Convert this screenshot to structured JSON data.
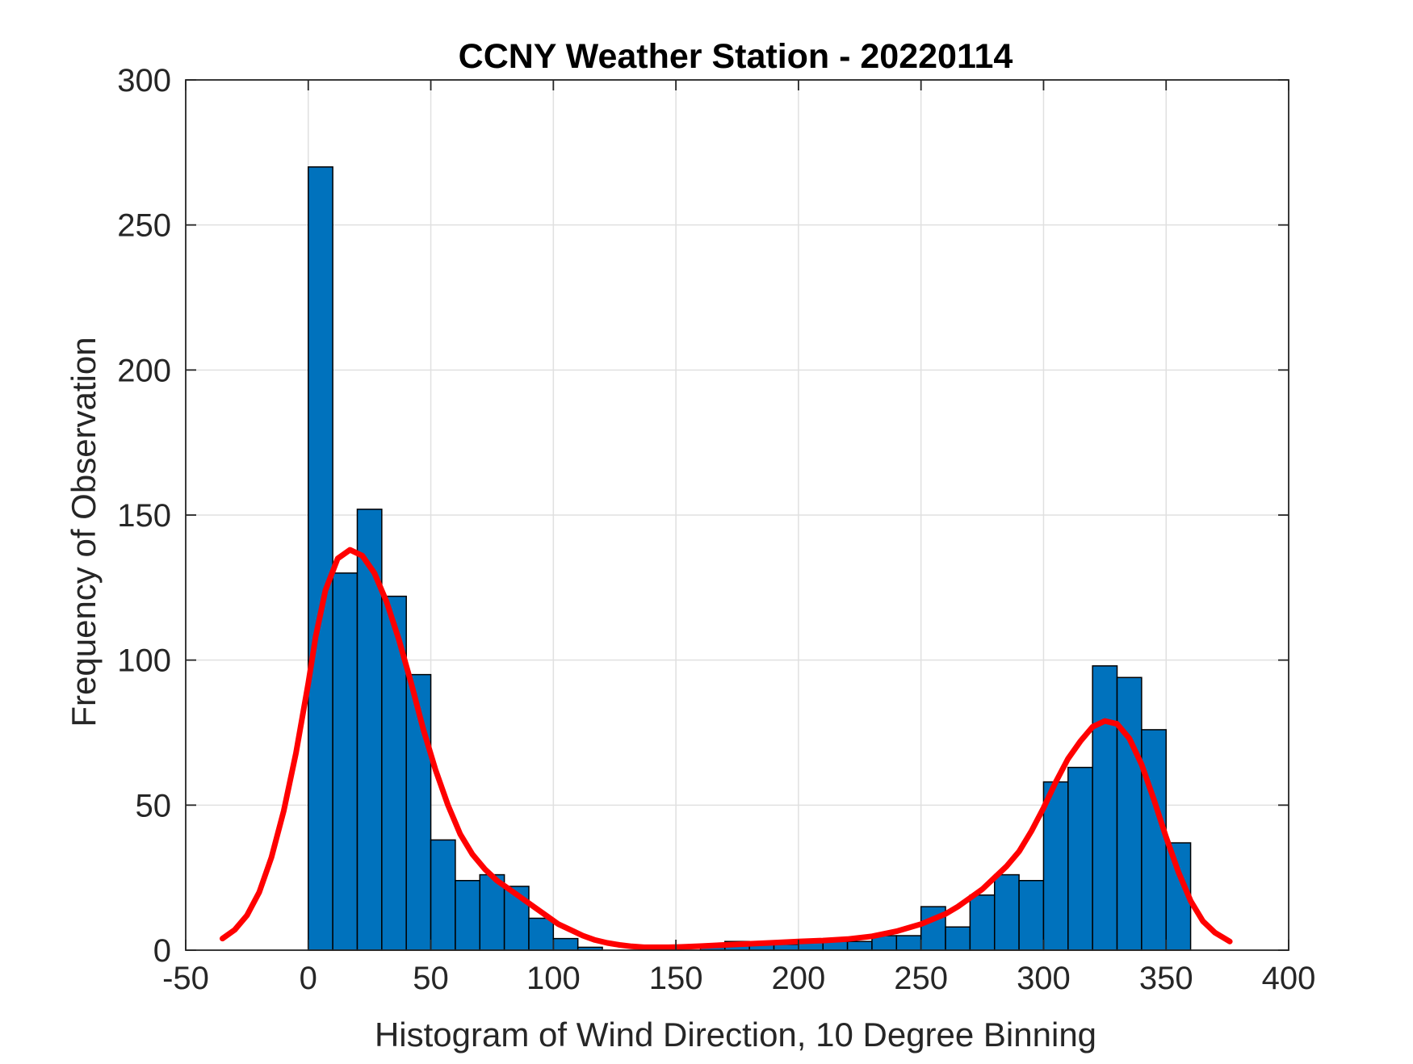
{
  "chart_data": {
    "type": "bar",
    "title": "CCNY Weather Station - 20220114",
    "xlabel": "Histogram of Wind Direction, 10 Degree Binning",
    "ylabel": "Frequency of Observation",
    "xlim": [
      -50,
      400
    ],
    "ylim": [
      0,
      300
    ],
    "xticks": [
      "-50",
      "0",
      "50",
      "100",
      "150",
      "200",
      "250",
      "300",
      "350",
      "400"
    ],
    "yticks": [
      "0",
      "50",
      "100",
      "150",
      "200",
      "250",
      "300"
    ],
    "grid": true,
    "bin_width": 10,
    "bins": [
      {
        "start": 0,
        "value": 270
      },
      {
        "start": 10,
        "value": 130
      },
      {
        "start": 20,
        "value": 152
      },
      {
        "start": 30,
        "value": 122
      },
      {
        "start": 40,
        "value": 95
      },
      {
        "start": 50,
        "value": 38
      },
      {
        "start": 60,
        "value": 24
      },
      {
        "start": 70,
        "value": 26
      },
      {
        "start": 80,
        "value": 22
      },
      {
        "start": 90,
        "value": 11
      },
      {
        "start": 100,
        "value": 4
      },
      {
        "start": 110,
        "value": 1
      },
      {
        "start": 120,
        "value": 0
      },
      {
        "start": 130,
        "value": 0
      },
      {
        "start": 140,
        "value": 0
      },
      {
        "start": 150,
        "value": 0
      },
      {
        "start": 160,
        "value": 1
      },
      {
        "start": 170,
        "value": 3
      },
      {
        "start": 180,
        "value": 2
      },
      {
        "start": 190,
        "value": 2
      },
      {
        "start": 200,
        "value": 3
      },
      {
        "start": 210,
        "value": 3
      },
      {
        "start": 220,
        "value": 3
      },
      {
        "start": 230,
        "value": 5
      },
      {
        "start": 240,
        "value": 5
      },
      {
        "start": 250,
        "value": 15
      },
      {
        "start": 260,
        "value": 8
      },
      {
        "start": 270,
        "value": 19
      },
      {
        "start": 280,
        "value": 26
      },
      {
        "start": 290,
        "value": 24
      },
      {
        "start": 300,
        "value": 58
      },
      {
        "start": 310,
        "value": 63
      },
      {
        "start": 320,
        "value": 98
      },
      {
        "start": 330,
        "value": 94
      },
      {
        "start": 340,
        "value": 76
      },
      {
        "start": 350,
        "value": 37
      }
    ],
    "fit_curve": {
      "name": "density fit",
      "color": "#ff0000",
      "points": [
        [
          -35,
          4
        ],
        [
          -30,
          7
        ],
        [
          -25,
          12
        ],
        [
          -20,
          20
        ],
        [
          -15,
          32
        ],
        [
          -10,
          48
        ],
        [
          -5,
          68
        ],
        [
          0,
          92
        ],
        [
          3,
          108
        ],
        [
          7,
          124
        ],
        [
          12,
          135
        ],
        [
          17,
          138
        ],
        [
          22,
          136
        ],
        [
          27,
          130
        ],
        [
          32,
          120
        ],
        [
          37,
          107
        ],
        [
          42,
          92
        ],
        [
          47,
          76
        ],
        [
          52,
          62
        ],
        [
          57,
          50
        ],
        [
          62,
          40
        ],
        [
          67,
          33
        ],
        [
          72,
          28
        ],
        [
          77,
          24
        ],
        [
          82,
          21
        ],
        [
          87,
          18
        ],
        [
          92,
          15
        ],
        [
          97,
          12
        ],
        [
          102,
          9
        ],
        [
          107,
          7
        ],
        [
          112,
          5
        ],
        [
          117,
          3.5
        ],
        [
          122,
          2.5
        ],
        [
          127,
          1.8
        ],
        [
          132,
          1.3
        ],
        [
          137,
          1
        ],
        [
          142,
          1
        ],
        [
          147,
          1
        ],
        [
          152,
          1.1
        ],
        [
          160,
          1.4
        ],
        [
          170,
          1.8
        ],
        [
          180,
          2.2
        ],
        [
          190,
          2.6
        ],
        [
          200,
          3
        ],
        [
          210,
          3.3
        ],
        [
          220,
          3.8
        ],
        [
          230,
          4.8
        ],
        [
          240,
          6.5
        ],
        [
          250,
          9
        ],
        [
          260,
          12.5
        ],
        [
          265,
          15
        ],
        [
          270,
          18
        ],
        [
          275,
          21
        ],
        [
          280,
          25
        ],
        [
          285,
          29
        ],
        [
          290,
          34
        ],
        [
          295,
          41
        ],
        [
          300,
          49
        ],
        [
          305,
          58
        ],
        [
          310,
          66
        ],
        [
          315,
          72
        ],
        [
          320,
          77
        ],
        [
          325,
          79
        ],
        [
          330,
          78
        ],
        [
          335,
          73
        ],
        [
          340,
          64
        ],
        [
          345,
          52
        ],
        [
          350,
          39
        ],
        [
          355,
          27
        ],
        [
          360,
          17
        ],
        [
          365,
          10
        ],
        [
          370,
          6
        ],
        [
          376,
          3
        ]
      ]
    },
    "colors": {
      "bar_fill": "#0072bd",
      "bar_edge": "#000000",
      "grid": "#e0e0e0",
      "axis": "#262626"
    }
  }
}
